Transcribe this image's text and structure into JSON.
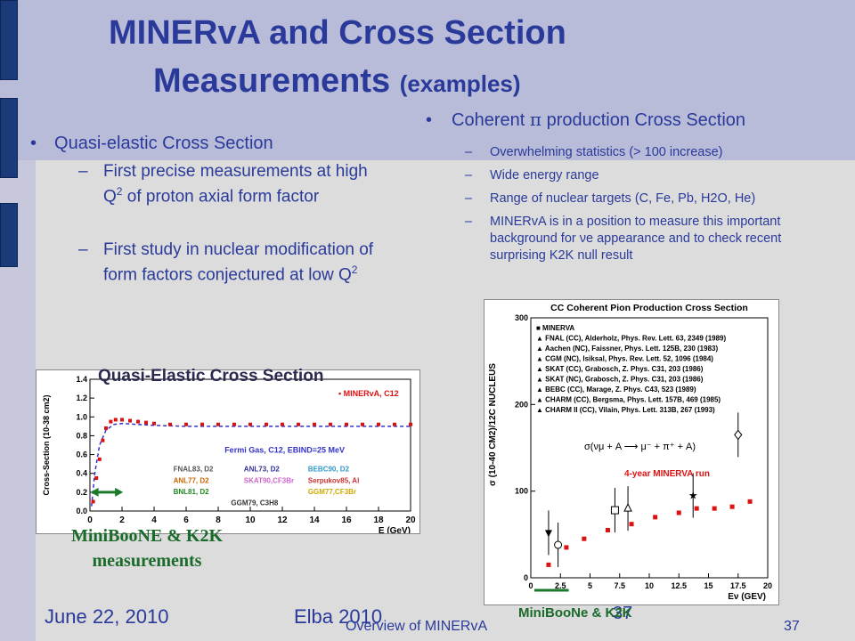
{
  "slide": {
    "title_line1": "MINERvA and Cross Section",
    "title_line2": "Measurements",
    "title_suffix": "(examples)"
  },
  "left": {
    "bullet": "Quasi-elastic Cross Section",
    "sub1_a": "First precise measurements at high Q",
    "sub1_b": " of proton axial form factor",
    "sub2_a": "First study in nuclear modification of form factors conjectured at low Q",
    "sup2": "2",
    "plot_title": "Quasi-Elastic Cross Section",
    "plot_ylabel": "Cross-Section  (10",
    "plot_ylabel_exp": "-38",
    "plot_ylabel_end": "cm",
    "plot_xlabel": "E (GeV)",
    "legend": [
      "FNAL83, D2",
      "ANL77, D2",
      "BNL81, D2",
      "GGM79, C3H8",
      "ANL73, D2",
      "SKAT90,CF3Br",
      "Serpukov85, Al",
      "BEBC90, D2",
      "GGM77,CF3Br"
    ],
    "fermi_label": "Fermi Gas, C12, EBIND=25 MeV",
    "minerva_label": "MINERvA, C12",
    "caption_line1": "MiniBooNE & K2K",
    "caption_line2": "measurements"
  },
  "right": {
    "bullet_a": "Coherent",
    "bullet_pi": "π",
    "bullet_b": "production Cross Section",
    "items": [
      "Overwhelming statistics (> 100 increase)",
      "Wide energy range",
      "Range of nuclear targets (C, Fe, Pb, H2O, He)",
      "MINERvA is in a position to measure this important background for νe appearance and to check recent surprising K2K null result"
    ],
    "plot_title": "CC Coherent Pion Production Cross Section",
    "plot_ylabel": "σ (10-40 CM2)/12C NUCLEUS",
    "plot_xlabel": "Eν (GEV)",
    "legend": [
      "MINERVA",
      "FNAL (CC), Alderholz, Phys. Rev. Lett. 63, 2349 (1989)",
      "Aachen (NC), Faissner, Phys. Lett. 125B, 230 (1983)",
      "CGM (NC), Isiksal, Phys. Rev. Lett. 52, 1096 (1984)",
      "SKAT (CC), Grabosch, Z. Phys. C31, 203 (1986)",
      "SKAT (NC), Grabosch, Z. Phys. C31, 203 (1986)",
      "BEBC (CC), Marage, Z. Phys. C43, 523 (1989)",
      "CHARM (CC), Bergsma, Phys. Lett. 157B, 469 (1985)",
      "CHARM II (CC), Vilain, Phys. Lett. 313B, 267 (1993)"
    ],
    "formula": "σ(νμ + A ⟶ μ⁻ + π⁺ + A)",
    "run_label": "4-year MINERVA run",
    "caption": "MiniBooNe & K2K"
  },
  "footer": {
    "date": "June 22, 2010",
    "venue": "Elba 2010",
    "talk": "Overview of MINERvA",
    "page1": "37",
    "page2": "37"
  },
  "chart_data": [
    {
      "type": "scatter",
      "title": "Quasi-Elastic Cross Section",
      "xlabel": "E (GeV)",
      "ylabel": "Cross-Section (10-38 cm2)",
      "xlim": [
        0,
        20
      ],
      "ylim": [
        0,
        1.4
      ],
      "x_ticks": [
        0,
        2,
        4,
        6,
        8,
        10,
        12,
        14,
        16,
        18,
        20
      ],
      "y_ticks": [
        0,
        0.2,
        0.4,
        0.6,
        0.8,
        1.0,
        1.2,
        1.4
      ],
      "series": [
        {
          "name": "MINERvA, C12",
          "x": [
            0.2,
            0.4,
            0.6,
            0.8,
            1.0,
            1.3,
            1.6,
            2,
            2.5,
            3,
            3.5,
            4,
            5,
            6,
            7,
            8,
            9,
            10,
            11,
            12,
            13,
            14,
            15,
            16,
            17,
            18,
            19,
            20
          ],
          "y": [
            0.1,
            0.35,
            0.55,
            0.75,
            0.88,
            0.95,
            0.97,
            0.97,
            0.96,
            0.95,
            0.94,
            0.93,
            0.92,
            0.92,
            0.92,
            0.92,
            0.92,
            0.92,
            0.92,
            0.92,
            0.92,
            0.92,
            0.92,
            0.92,
            0.92,
            0.92,
            0.92,
            0.92
          ]
        },
        {
          "name": "Fermi Gas, C12, EBIND=25 MeV",
          "x": [
            0.1,
            0.3,
            0.6,
            1.0,
            1.5,
            2,
            3,
            4,
            6,
            8,
            10,
            12,
            14,
            16,
            18,
            20
          ],
          "y": [
            0.05,
            0.4,
            0.7,
            0.86,
            0.92,
            0.93,
            0.92,
            0.91,
            0.9,
            0.9,
            0.9,
            0.9,
            0.9,
            0.9,
            0.9,
            0.9
          ]
        }
      ]
    },
    {
      "type": "scatter",
      "title": "CC Coherent Pion Production Cross Section",
      "xlabel": "Eν (GEV)",
      "ylabel": "σ (10-40 CM2)/12C NUCLEUS",
      "xlim": [
        0,
        20
      ],
      "ylim": [
        0,
        300
      ],
      "x_ticks": [
        0,
        2.5,
        5,
        7.5,
        10,
        12.5,
        15,
        17.5,
        20
      ],
      "y_ticks": [
        0,
        100,
        200,
        300
      ],
      "series": [
        {
          "name": "MINERVA",
          "x": [
            1.5,
            3,
            4.5,
            6.5,
            8.5,
            10.5,
            12.5,
            14,
            15.5,
            17,
            18.5
          ],
          "y": [
            15,
            35,
            45,
            55,
            62,
            70,
            75,
            80,
            80,
            82,
            88
          ]
        }
      ],
      "run_label": "4-year MINERVA run"
    }
  ]
}
